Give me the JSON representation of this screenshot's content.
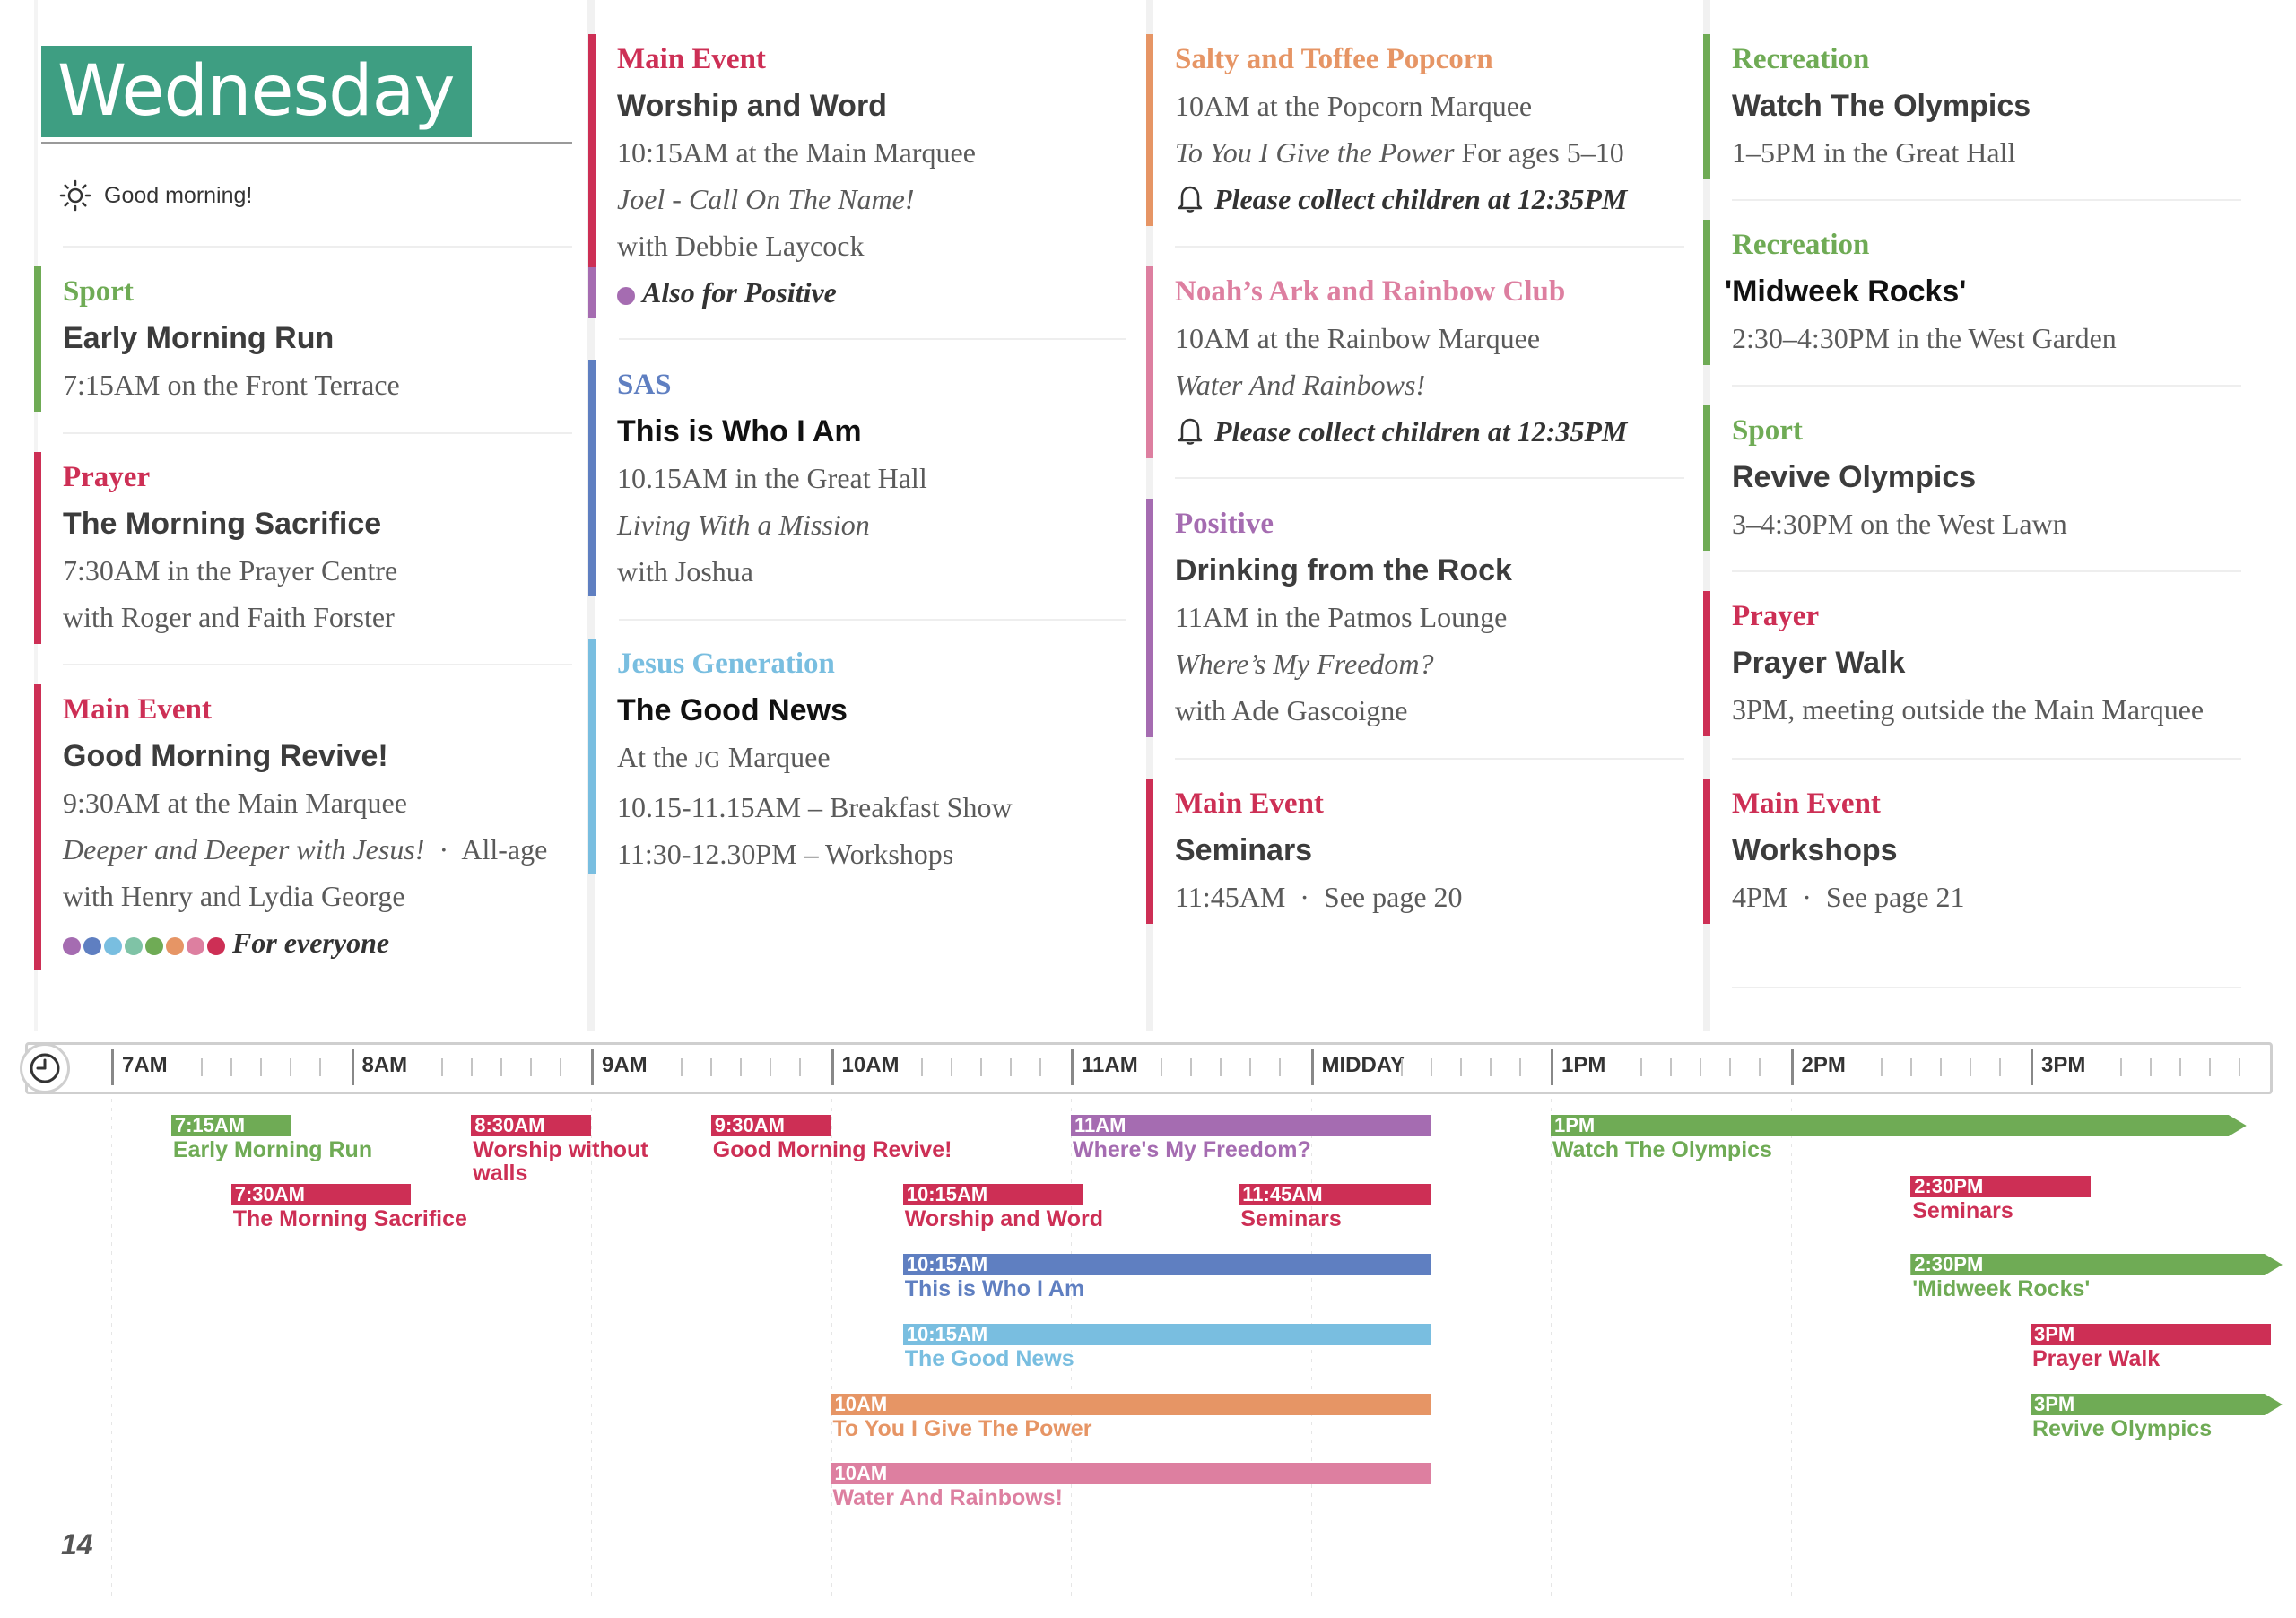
{
  "day": "Wednesday",
  "greeting": "Good morning!",
  "page_number": "14",
  "colors": {
    "sport": "#6fab55",
    "prayer": "#cd2f55",
    "main": "#cd2f55",
    "sas": "#5f7fc1",
    "jg": "#79bee0",
    "popcorn": "#e69565",
    "noah": "#dd7fa0",
    "positive": "#a56cb1",
    "recreation": "#6fab55"
  },
  "columns": [
    [
      {
        "cat": "Sport",
        "title": "Early Morning Run",
        "lines": [
          "7:15AM on the Front Terrace"
        ]
      },
      {
        "cat": "Prayer",
        "title": "The Morning Sacrifice",
        "lines": [
          "7:30AM in the Prayer Centre",
          "with Roger and Faith Forster"
        ]
      },
      {
        "cat": "Main Event",
        "title": "Good Morning Revive!",
        "lines": [
          "9:30AM at the Main Marquee",
          "Deeper and Deeper with Jesus!",
          "All-age",
          "with Henry and Lydia George",
          "For everyone"
        ]
      }
    ],
    [
      {
        "cat": "Main Event",
        "title": "Worship and Word",
        "lines": [
          "10:15AM at the Main Marquee",
          "Joel - Call On The Name!",
          "with Debbie Laycock",
          "Also for Positive"
        ]
      },
      {
        "cat": "SAS",
        "title": "This is Who I Am",
        "lines": [
          "10.15AM in the Great Hall",
          "Living With a Mission",
          "with Joshua"
        ]
      },
      {
        "cat": "Jesus Generation",
        "title": "The Good News",
        "lines": [
          "At the JG Marquee",
          "10.15-11.15AM – Breakfast Show",
          "11:30-12.30PM – Workshops"
        ]
      }
    ],
    [
      {
        "cat": "Salty and Toffee Popcorn",
        "lines": [
          "10AM at the Popcorn Marquee",
          "To You I Give the Power",
          "For ages 5–10",
          "Please collect children at 12:35PM"
        ]
      },
      {
        "cat": "Noah’s Ark and Rainbow Club",
        "lines": [
          "10AM at the Rainbow Marquee",
          "Water And Rainbows!",
          "Please collect children at 12:35PM"
        ]
      },
      {
        "cat": "Positive",
        "title": "Drinking from the Rock",
        "lines": [
          "11AM in the Patmos Lounge",
          "Where’s My Freedom?",
          "with Ade Gascoigne"
        ]
      },
      {
        "cat": "Main Event",
        "title": "Seminars",
        "lines": [
          "11:45AM",
          "See page 20"
        ]
      }
    ],
    [
      {
        "cat": "Recreation",
        "title": "Watch The Olympics",
        "lines": [
          "1–5PM in the Great Hall"
        ]
      },
      {
        "cat": "Recreation",
        "title": "'Midweek Rocks'",
        "lines": [
          "2:30–4:30PM in the West Garden"
        ]
      },
      {
        "cat": "Sport",
        "title": "Revive Olympics",
        "lines": [
          "3–4:30PM on the West Lawn"
        ]
      },
      {
        "cat": "Prayer",
        "title": "Prayer Walk",
        "lines": [
          "3PM, meeting outside the Main Marquee"
        ]
      },
      {
        "cat": "Main Event",
        "title": "Workshops",
        "lines": [
          "4PM",
          "See page 21"
        ]
      }
    ]
  ],
  "timeline_hours": [
    "7AM",
    "8AM",
    "9AM",
    "10AM",
    "11AM",
    "MIDDAY",
    "1PM",
    "2PM",
    "3PM"
  ],
  "timeline": [
    {
      "time": "7:15AM",
      "label": "Early Morning Run",
      "start": 7.25,
      "end": 7.75,
      "color": "#6fab55"
    },
    {
      "time": "7:30AM",
      "label": "The Morning Sacrifice",
      "start": 7.5,
      "end": 8.25,
      "color": "#cd2f55"
    },
    {
      "time": "8:30AM",
      "label": "Worship without walls",
      "start": 8.5,
      "end": 9.0,
      "color": "#cd2f55"
    },
    {
      "time": "9:30AM",
      "label": "Good Morning Revive!",
      "start": 9.5,
      "end": 10.0,
      "color": "#cd2f55"
    },
    {
      "time": "11AM",
      "label": "Where's My Freedom?",
      "start": 11.0,
      "end": 12.5,
      "color": "#a56cb1"
    },
    {
      "time": "10:15AM",
      "label": "Worship and Word",
      "start": 10.3,
      "end": 11.05,
      "color": "#cd2f55"
    },
    {
      "time": "11:45AM",
      "label": "Seminars",
      "start": 11.7,
      "end": 12.5,
      "color": "#cd2f55"
    },
    {
      "time": "10:15AM",
      "label": "This is Who I Am",
      "start": 10.3,
      "end": 12.5,
      "color": "#5f7fc1"
    },
    {
      "time": "10:15AM",
      "label": "The Good News",
      "start": 10.3,
      "end": 12.5,
      "color": "#79bee0"
    },
    {
      "time": "10AM",
      "label": "To You I Give The Power",
      "start": 10.0,
      "end": 12.5,
      "color": "#e69565"
    },
    {
      "time": "10AM",
      "label": "Water And Rainbows!",
      "start": 10.0,
      "end": 12.5,
      "color": "#dd7fa0"
    },
    {
      "time": "1PM",
      "label": "Watch The Olympics",
      "start": 13.0,
      "end": 15.9,
      "color": "#6fab55",
      "arrow": true
    },
    {
      "time": "2:30PM",
      "label": "Seminars",
      "start": 14.5,
      "end": 15.25,
      "color": "#cd2f55"
    },
    {
      "time": "2:30PM",
      "label": "'Midweek Rocks'",
      "start": 14.5,
      "end": 16.05,
      "color": "#6fab55",
      "arrow": true
    },
    {
      "time": "3PM",
      "label": "Prayer Walk",
      "start": 15.0,
      "end": 16.0,
      "color": "#cd2f55"
    },
    {
      "time": "3PM",
      "label": "Revive Olympics",
      "start": 15.0,
      "end": 16.05,
      "color": "#6fab55",
      "arrow": true
    }
  ]
}
